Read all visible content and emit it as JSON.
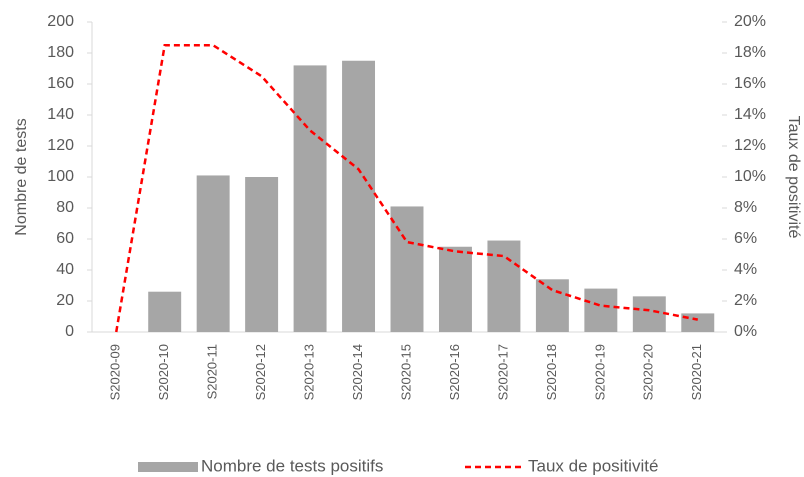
{
  "chart_data": {
    "type": "bar",
    "categories": [
      "S2020-09",
      "S2020-10",
      "S2020-11",
      "S2020-12",
      "S2020-13",
      "S2020-14",
      "S2020-15",
      "S2020-16",
      "S2020-17",
      "S2020-18",
      "S2020-19",
      "S2020-20",
      "S2020-21"
    ],
    "series": [
      {
        "name": "Nombre de tests positifs",
        "type": "bar",
        "color": "#a6a6a6",
        "values": [
          0,
          26,
          101,
          100,
          172,
          175,
          81,
          55,
          59,
          34,
          28,
          23,
          12
        ]
      },
      {
        "name": "Taux de positivité",
        "type": "line",
        "axis": "y2",
        "color": "#ff0000",
        "dashed": true,
        "values": [
          0,
          18.5,
          18.5,
          16.5,
          13,
          10.5,
          5.8,
          5.2,
          4.9,
          2.7,
          1.7,
          1.4,
          0.8
        ]
      }
    ],
    "ylabel": "Nombre de tests",
    "y2label": "Taux de positivité",
    "ylim": [
      0,
      200
    ],
    "yticks": [
      0,
      20,
      40,
      60,
      80,
      100,
      120,
      140,
      160,
      180,
      200
    ],
    "y2lim": [
      0,
      20
    ],
    "y2ticks": [
      {
        "value": 0,
        "label": "0%"
      },
      {
        "value": 2,
        "label": "2%"
      },
      {
        "value": 4,
        "label": "4%"
      },
      {
        "value": 6,
        "label": "6%"
      },
      {
        "value": 8,
        "label": "8%"
      },
      {
        "value": 10,
        "label": "10%"
      },
      {
        "value": 12,
        "label": "12%"
      },
      {
        "value": 14,
        "label": "14%"
      },
      {
        "value": 16,
        "label": "16%"
      },
      {
        "value": 18,
        "label": "18%"
      },
      {
        "value": 20,
        "label": "20%"
      }
    ],
    "legend": "bottom"
  }
}
